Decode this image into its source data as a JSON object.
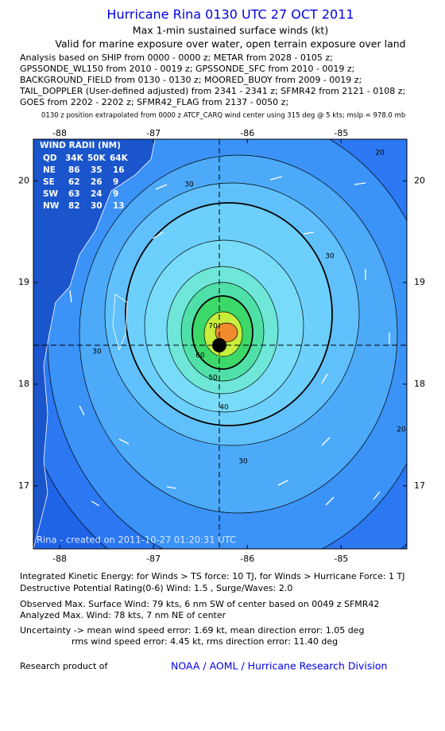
{
  "header": {
    "title": "Hurricane Rina 0130 UTC 27 OCT 2011",
    "subtitle": "Max 1-min sustained surface winds (kt)",
    "validity": "Valid for marine exposure over water, open terrain exposure over land",
    "sources": [
      "Analysis based on SHIP from 0000 - 0000 z; METAR from 2028 - 0105 z;",
      "GPSSONDE_WL150 from 2010 - 0019 z; GPSSONDE_SFC from 2010 - 0019 z;",
      "BACKGROUND_FIELD from 0130 - 0130 z; MOORED_BUOY from 2009 - 0019 z;",
      "TAIL_DOPPLER (User-defined adjusted) from 2341 - 2341 z; SFMR42 from 2121 - 0108 z;",
      "GOES from 2202 - 2202 z; SFMR42_FLAG from 2137 - 0050 z;"
    ],
    "position_note": "0130 z position extrapolated from 0000 z ATCF_CARQ wind center using 315 deg @ 5 kts; mslp = 978.0 mb"
  },
  "map": {
    "xlim": [
      -88.28,
      -84.3
    ],
    "ylim": [
      16.38,
      20.41
    ],
    "xticks": [
      -88,
      -87,
      -86,
      -85
    ],
    "yticks": [
      17,
      18,
      19,
      20
    ],
    "wind_radii": {
      "title": "WIND RADII (NM)",
      "header": [
        "QD",
        "34K",
        "50K",
        "64K"
      ],
      "rows": [
        [
          "NE",
          86,
          35,
          16
        ],
        [
          "SE",
          62,
          26,
          9
        ],
        [
          "SW",
          63,
          24,
          9
        ],
        [
          "NW",
          82,
          30,
          13
        ]
      ]
    },
    "contour_labels": [
      "20",
      "30",
      "30",
      "30",
      "40",
      "30",
      "50",
      "60",
      "20",
      "70"
    ],
    "caption": "Rina - created on 2011-10-27 01:20:31 UTC"
  },
  "footer": {
    "energy": [
      "Integrated Kinetic Energy:  for Winds > TS force: 10 TJ,  for Winds > Hurricane Force: 1 TJ",
      "Destructive Potential Rating(0-6)   Wind: 1.5 , Surge/Waves: 2.0"
    ],
    "observed": [
      "Observed Max. Surface Wind: 79 kts, 6 nm SW of center based on 0049 z SFMR42",
      "Analyzed Max. Wind: 78 kts, 7 nm NE of center"
    ],
    "uncertainty": [
      "Uncertainty -> mean wind speed error: 1.69 kt,   mean direction error: 1.05 deg",
      "rms wind speed error: 4.45 kt,   rms direction error: 11.40 deg"
    ],
    "research_label": "Research product of",
    "organization": "NOAA / AOML / Hurricane Research Division"
  }
}
